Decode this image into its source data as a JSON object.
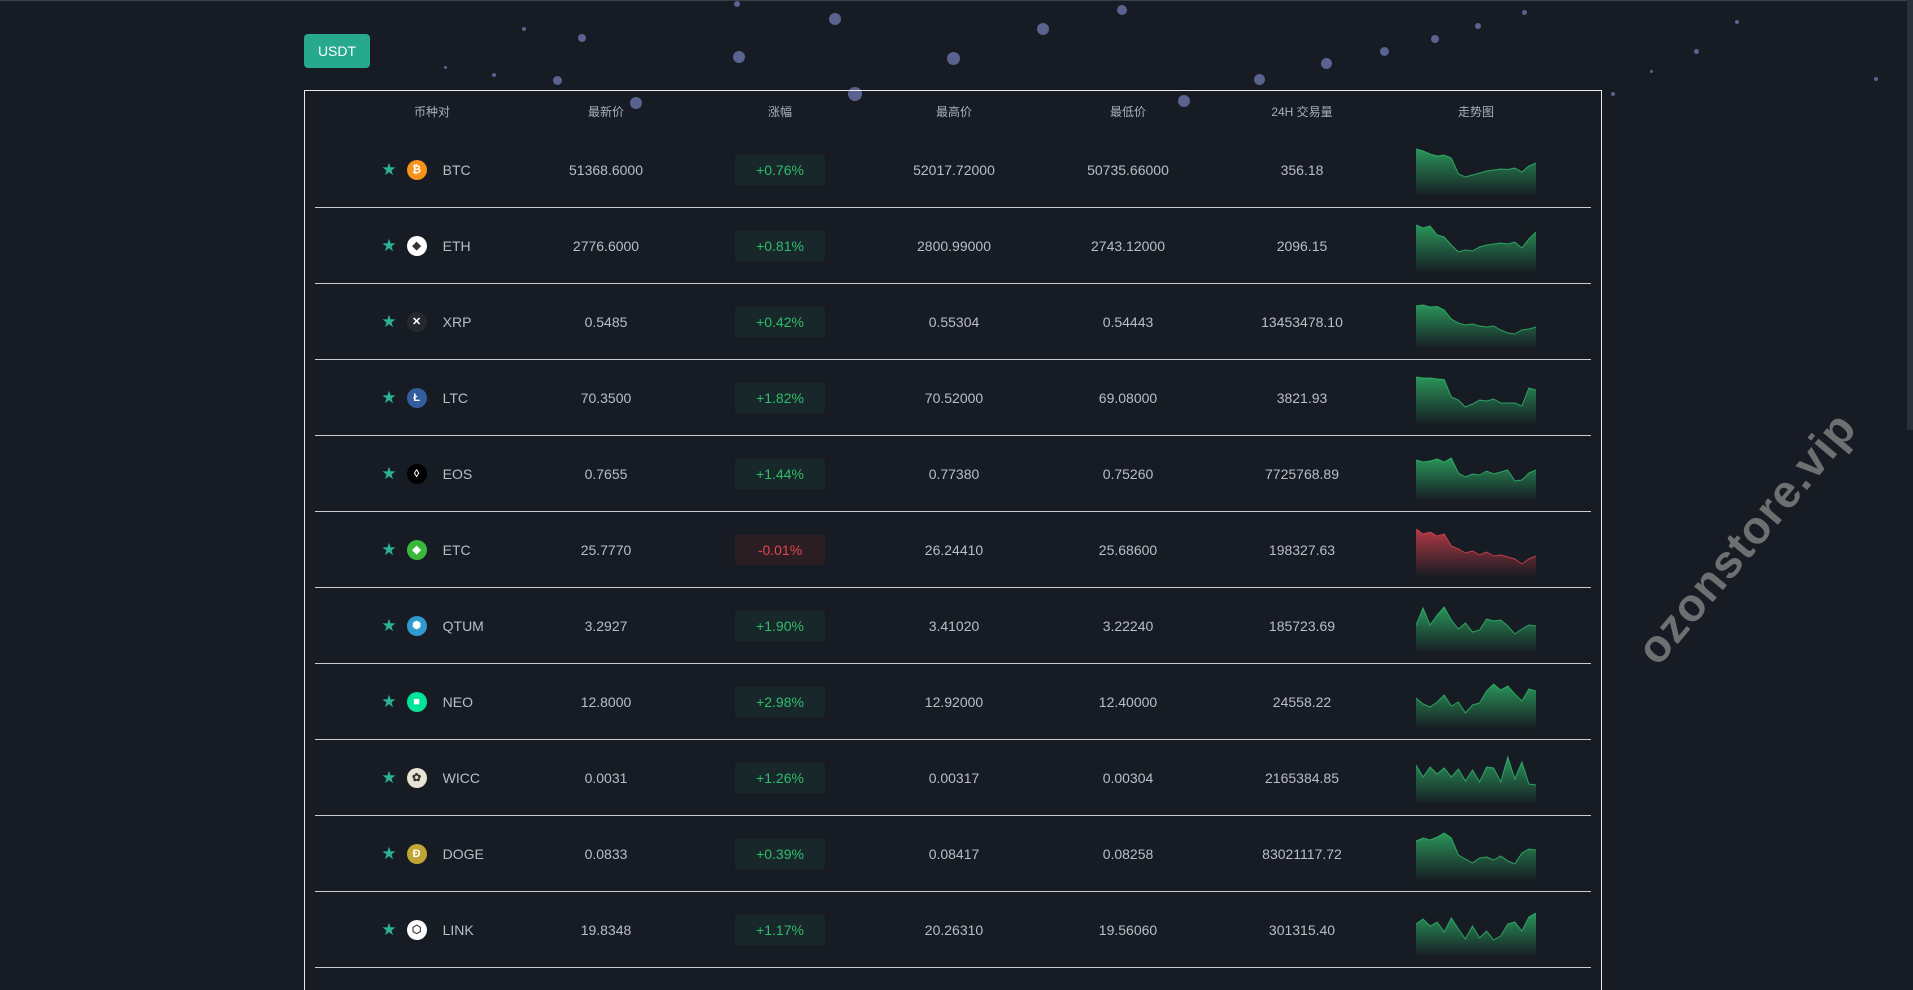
{
  "tab_button": "USDT",
  "watermark": "ozonstore.vip",
  "columns": [
    "币种对",
    "最新价",
    "涨幅",
    "最高价",
    "最低价",
    "24H 交易量",
    "走势图"
  ],
  "colors": {
    "up": "#2fbd6b",
    "down": "#e5444f",
    "accent": "#26a98d",
    "star": "#2bb39a"
  },
  "rows": [
    {
      "symbol": "BTC",
      "icon": "bitcoin-icon",
      "icon_color": "#f7931a",
      "icon_glyph": "₿",
      "last": "51368.6000",
      "change": "+0.76%",
      "dir": "up",
      "high": "52017.72000",
      "low": "50735.66000",
      "volume": "356.18",
      "trend": [
        9,
        8.6,
        8,
        7.6,
        7.8,
        7.2,
        4,
        3.4,
        3.8,
        4.2,
        4.6,
        4.8,
        5,
        4.9,
        5.2,
        4.4,
        5.6,
        6.2
      ]
    },
    {
      "symbol": "ETH",
      "icon": "ethereum-icon",
      "icon_color": "#ffffff",
      "icon_glyph": "◆",
      "last": "2776.6000",
      "change": "+0.81%",
      "dir": "up",
      "high": "2800.99000",
      "low": "2743.12000",
      "volume": "2096.15",
      "trend": [
        9,
        8.4,
        8.8,
        7,
        6.6,
        5,
        3.6,
        4,
        3.8,
        4.6,
        5,
        5.2,
        5.4,
        5.2,
        5.6,
        4.4,
        6.2,
        7.6
      ]
    },
    {
      "symbol": "XRP",
      "icon": "xrp-icon",
      "icon_color": "#23292f",
      "icon_glyph": "✕",
      "last": "0.5485",
      "change": "+0.42%",
      "dir": "up",
      "high": "0.55304",
      "low": "0.54443",
      "volume": "13453478.10",
      "trend": [
        8,
        8.2,
        7.8,
        7.9,
        7.2,
        5.4,
        4.6,
        4.2,
        4.4,
        4,
        3.8,
        4,
        3.2,
        2.6,
        2.4,
        3.2,
        3.4,
        3.8
      ]
    },
    {
      "symbol": "LTC",
      "icon": "litecoin-icon",
      "icon_color": "#345d9d",
      "icon_glyph": "Ł",
      "last": "70.3500",
      "change": "+1.82%",
      "dir": "up",
      "high": "70.52000",
      "low": "69.08000",
      "volume": "3821.93",
      "trend": [
        9,
        8.8,
        8.8,
        8.6,
        8.5,
        5,
        4.4,
        3,
        3.6,
        4.4,
        4.2,
        4.6,
        3.8,
        3.8,
        3.8,
        3.2,
        6.8,
        6.4
      ]
    },
    {
      "symbol": "EOS",
      "icon": "eos-icon",
      "icon_color": "#000000",
      "icon_glyph": "◊",
      "last": "0.7655",
      "change": "+1.44%",
      "dir": "up",
      "high": "0.77380",
      "low": "0.75260",
      "volume": "7725768.89",
      "trend": [
        7.6,
        7.2,
        7.4,
        7.8,
        7.2,
        8,
        5,
        4.2,
        4.8,
        4.6,
        5.4,
        4.8,
        5.2,
        5.6,
        3.4,
        3.6,
        5,
        5.6
      ]
    },
    {
      "symbol": "ETC",
      "icon": "ethereum-classic-icon",
      "icon_color": "#3ab83a",
      "icon_glyph": "◆",
      "last": "25.7770",
      "change": "-0.01%",
      "dir": "down",
      "high": "26.24410",
      "low": "25.68600",
      "volume": "198327.63",
      "trend": [
        9,
        8,
        8.4,
        7.6,
        8,
        5.6,
        5,
        4.2,
        4.6,
        3.8,
        4.4,
        3.6,
        3.8,
        3.4,
        3,
        2,
        3,
        3.6
      ]
    },
    {
      "symbol": "QTUM",
      "icon": "qtum-icon",
      "icon_color": "#2e9ad0",
      "icon_glyph": "✺",
      "last": "3.2927",
      "change": "+1.90%",
      "dir": "up",
      "high": "3.41020",
      "low": "3.22240",
      "volume": "185723.69",
      "trend": [
        5,
        8.4,
        5,
        7,
        8.6,
        6,
        4.2,
        5.4,
        3.6,
        4,
        6.2,
        5.8,
        6,
        4.8,
        3.2,
        4.2,
        5,
        4.8
      ]
    },
    {
      "symbol": "NEO",
      "icon": "neo-icon",
      "icon_color": "#00e599",
      "icon_glyph": "■",
      "last": "12.8000",
      "change": "+2.98%",
      "dir": "up",
      "high": "12.92000",
      "low": "12.40000",
      "volume": "24558.22",
      "trend": [
        5.6,
        4.4,
        3.8,
        4.8,
        6.2,
        4,
        4.8,
        2.6,
        4.2,
        4.6,
        7,
        8.4,
        7.2,
        8,
        6.4,
        5,
        7.4,
        7
      ]
    },
    {
      "symbol": "WICC",
      "icon": "wicc-icon",
      "icon_color": "#e8e4d4",
      "icon_glyph": "✿",
      "last": "0.0031",
      "change": "+1.26%",
      "dir": "up",
      "high": "0.00317",
      "low": "0.00304",
      "volume": "2165384.85",
      "trend": [
        7.4,
        5,
        7,
        5.6,
        6.8,
        5,
        6.6,
        4.2,
        6.4,
        4,
        7,
        6.8,
        4,
        9,
        4.6,
        8,
        3.6,
        3.4
      ]
    },
    {
      "symbol": "DOGE",
      "icon": "dogecoin-icon",
      "icon_color": "#c2a633",
      "icon_glyph": "Ð",
      "last": "0.0833",
      "change": "+0.39%",
      "dir": "up",
      "high": "0.08417",
      "low": "0.08258",
      "volume": "83021117.72",
      "trend": [
        7.4,
        8,
        7.6,
        8.2,
        9,
        8,
        4.6,
        3.8,
        3,
        4,
        4.2,
        3.6,
        4.4,
        3.4,
        2.8,
        5,
        5.8,
        5.6
      ]
    },
    {
      "symbol": "LINK",
      "icon": "chainlink-icon",
      "icon_color": "#ffffff",
      "icon_glyph": "⬡",
      "last": "19.8348",
      "change": "+1.17%",
      "dir": "up",
      "high": "20.26310",
      "low": "19.56060",
      "volume": "301315.40",
      "trend": [
        6,
        7,
        5.6,
        6.4,
        4.4,
        7.2,
        5,
        3,
        5.6,
        3.2,
        4.6,
        2.8,
        3.6,
        6,
        6.4,
        4.6,
        7.4,
        8.2
      ]
    }
  ]
}
